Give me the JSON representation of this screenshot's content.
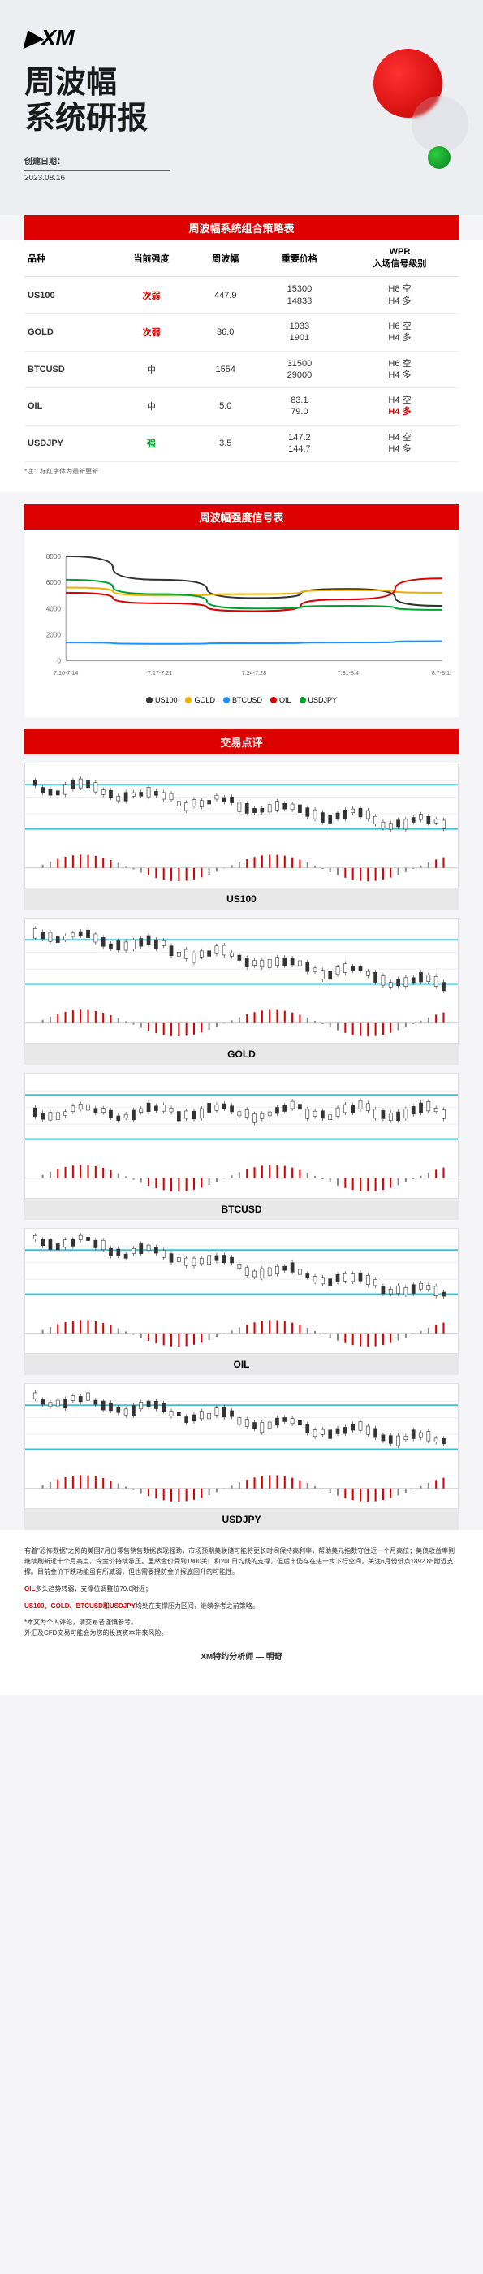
{
  "header": {
    "logo": "▶XM",
    "title_line1": "周波幅",
    "title_line2": "系统研报",
    "date_label": "创建日期：",
    "date": "2023.08.16"
  },
  "banners": {
    "strategy": "周波幅系统组合策略表",
    "signal": "周波幅强度信号表",
    "commentary": "交易点评"
  },
  "table": {
    "headers": [
      "品种",
      "当前强度",
      "周波幅",
      "重要价格",
      "WPR\n入场信号级别"
    ],
    "rows": [
      {
        "sym": "US100",
        "strength": "次弱",
        "str_color": "red",
        "range": "447.9",
        "price": "15300\n14838",
        "wpr": [
          {
            "t": "H8 空",
            "c": ""
          },
          {
            "t": "H4 多",
            "c": ""
          }
        ]
      },
      {
        "sym": "GOLD",
        "strength": "次弱",
        "str_color": "red",
        "range": "36.0",
        "price": "1933\n1901",
        "wpr": [
          {
            "t": "H6 空",
            "c": ""
          },
          {
            "t": "H4 多",
            "c": ""
          }
        ]
      },
      {
        "sym": "BTCUSD",
        "strength": "中",
        "str_color": "",
        "range": "1554",
        "price": "31500\n29000",
        "wpr": [
          {
            "t": "H6 空",
            "c": ""
          },
          {
            "t": "H4 多",
            "c": ""
          }
        ]
      },
      {
        "sym": "OIL",
        "strength": "中",
        "str_color": "",
        "range": "5.0",
        "price": "83.1\n79.0",
        "wpr": [
          {
            "t": "H4 空",
            "c": ""
          },
          {
            "t": "H4 多",
            "c": "red"
          }
        ]
      },
      {
        "sym": "USDJPY",
        "strength": "强",
        "str_color": "green",
        "range": "3.5",
        "price": "147.2\n144.7",
        "wpr": [
          {
            "t": "H4 空",
            "c": ""
          },
          {
            "t": "H4 多",
            "c": ""
          }
        ]
      }
    ],
    "note": "*注：标红字体为最新更新"
  },
  "signal_chart": {
    "ymax": 8000,
    "ymin": 0,
    "ytick": 2000,
    "x_labels": [
      "7.10-7.14",
      "7.17-7.21",
      "7.24-7.28",
      "7.31-8.4",
      "8.7-8.11"
    ],
    "series": [
      {
        "name": "US100",
        "color": "#333333",
        "values": [
          8000,
          6200,
          4800,
          5500,
          4200
        ]
      },
      {
        "name": "GOLD",
        "color": "#f0b000",
        "values": [
          5600,
          5000,
          5100,
          5400,
          5200
        ]
      },
      {
        "name": "BTCUSD",
        "color": "#2090ff",
        "values": [
          1400,
          1300,
          1350,
          1400,
          1500
        ]
      },
      {
        "name": "OIL",
        "color": "#dc0000",
        "values": [
          5200,
          4400,
          3800,
          4700,
          6300
        ]
      },
      {
        "name": "USDJPY",
        "color": "#00a030",
        "values": [
          6200,
          5100,
          4000,
          4200,
          3900
        ]
      }
    ]
  },
  "trade_charts": [
    {
      "name": "US100",
      "h_line": "#40c0d0",
      "trend": "down",
      "candle_start": 0.25,
      "candle_end": 0.75,
      "osc_color": "#dc0000"
    },
    {
      "name": "GOLD",
      "h_line": "#40c0d0",
      "trend": "down",
      "candle_start": 0.15,
      "candle_end": 0.8,
      "osc_color": "#dc0000"
    },
    {
      "name": "BTCUSD",
      "h_line": "#40c0d0",
      "trend": "flat",
      "candle_start": 0.35,
      "candle_end": 0.55,
      "osc_color": "#dc0000"
    },
    {
      "name": "OIL",
      "h_line": "#40c0d0",
      "trend": "down",
      "candle_start": 0.1,
      "candle_end": 0.78,
      "osc_color": "#dc0000"
    },
    {
      "name": "USDJPY",
      "h_line": "#40c0d0",
      "trend": "down",
      "candle_start": 0.15,
      "candle_end": 0.7,
      "osc_color": "#dc0000"
    }
  ],
  "footer": {
    "p1": "有着\"恐怖数据\"之称的美国7月份零售销售数据表现强劲，市场预期美联储可能将更长时间保持高利率，帮助美元指数守住近一个月高位；美债收益率则继续刷新近十个月高点，令金价持续承压。虽然金价受到1900关口和200日均线的支撑，但后市仍存在进一步下行空间，关注6月份低点1892.85附近支撑。目前金价下跌动能虽有所减弱，但也需要提防金价探底回升的可能性。",
    "p2_pre": "OIL",
    "p2": "多头趋势转弱，支撑位调整位79.0附近；",
    "p3_syms": "US100、GOLD、BTCUSD和USDJPY",
    "p3": "均处在支撑压力区间，继续参考之前策略。",
    "disclaimer": "*本文为个人评论，请交易者谨慎参考。\n外汇及CFD交易可能会为您的投资资本带来风险。",
    "signature": "XM特约分析师 — 明奇"
  }
}
